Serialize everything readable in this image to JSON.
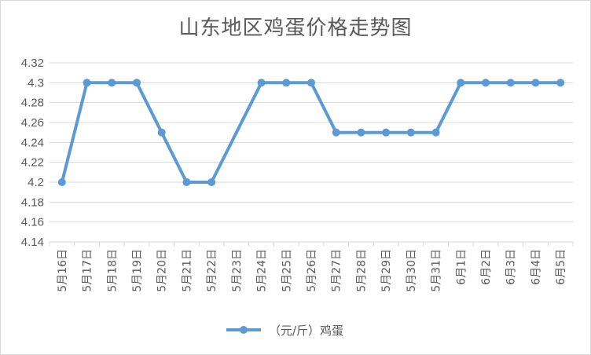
{
  "chart_data": {
    "type": "line",
    "title": "山东地区鸡蛋价格走势图",
    "xlabel": "",
    "ylabel": "",
    "ylim": [
      4.14,
      4.32
    ],
    "yticks": [
      "4.14",
      "4.16",
      "4.18",
      "4.2",
      "4.22",
      "4.24",
      "4.26",
      "4.28",
      "4.3",
      "4.32"
    ],
    "grid": true,
    "legend_position": "bottom",
    "categories": [
      "5月16日",
      "5月17日",
      "5月18日",
      "5月19日",
      "5月20日",
      "5月21日",
      "5月22日",
      "5月23日",
      "5月24日",
      "5月25日",
      "5月26日",
      "5月27日",
      "5月28日",
      "5月29日",
      "5月30日",
      "5月31日",
      "6月1日",
      "6月2日",
      "6月3日",
      "6月4日",
      "6月5日"
    ],
    "series": [
      {
        "name": "（元/斤）鸡蛋",
        "color": "#5b9bd5",
        "values": [
          4.2,
          4.3,
          4.3,
          4.3,
          4.25,
          4.2,
          4.2,
          null,
          4.3,
          4.3,
          4.3,
          4.25,
          4.25,
          4.25,
          4.25,
          4.25,
          4.3,
          4.3,
          4.3,
          4.3,
          4.3
        ]
      }
    ],
    "colors": {
      "grid": "#d9d9d9",
      "text": "#595959",
      "line": "#5b9bd5"
    }
  }
}
